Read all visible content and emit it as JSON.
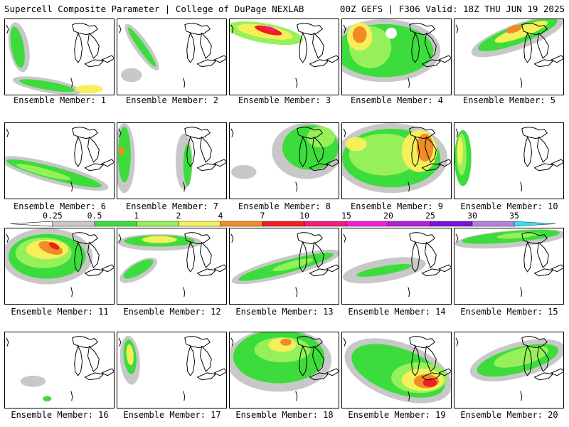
{
  "header": {
    "left": "Supercell Composite Parameter | College of DuPage NEXLAB",
    "right": "00Z GEFS | F306 Valid: 18Z THU JUN 19 2025"
  },
  "colorbar": {
    "labels": [
      "0.25",
      "0.5",
      "1",
      "2",
      "4",
      "7",
      "10",
      "15",
      "20",
      "25",
      "30",
      "35"
    ],
    "colors": [
      "#c8c8c8",
      "#3cdc3c",
      "#96f05a",
      "#f5f05a",
      "#f08c28",
      "#f01e1e",
      "#f01e78",
      "#f01edc",
      "#b41edc",
      "#7814dc",
      "#b482dc",
      "#3cdcf0"
    ]
  },
  "map_colors": {
    "land_outline": "#000000",
    "low": "#c8c8c8",
    "mid": "#3cdc3c",
    "lightgreen": "#96f05a",
    "yellow": "#f5f05a",
    "orange": "#f08c28",
    "red": "#f01e1e",
    "magenta": "#f01e78"
  },
  "members": [
    {
      "label": "Ensemble Member: 1"
    },
    {
      "label": "Ensemble Member: 2"
    },
    {
      "label": "Ensemble Member: 3"
    },
    {
      "label": "Ensemble Member: 4"
    },
    {
      "label": "Ensemble Member: 5"
    },
    {
      "label": "Ensemble Member: 6"
    },
    {
      "label": "Ensemble Member: 7"
    },
    {
      "label": "Ensemble Member: 8"
    },
    {
      "label": "Ensemble Member: 9"
    },
    {
      "label": "Ensemble Member: 10"
    },
    {
      "label": "Ensemble Member: 11"
    },
    {
      "label": "Ensemble Member: 12"
    },
    {
      "label": "Ensemble Member: 13"
    },
    {
      "label": "Ensemble Member: 14"
    },
    {
      "label": "Ensemble Member: 15"
    },
    {
      "label": "Ensemble Member: 16"
    },
    {
      "label": "Ensemble Member: 17"
    },
    {
      "label": "Ensemble Member: 18"
    },
    {
      "label": "Ensemble Member: 19"
    },
    {
      "label": "Ensemble Member: 20"
    }
  ]
}
